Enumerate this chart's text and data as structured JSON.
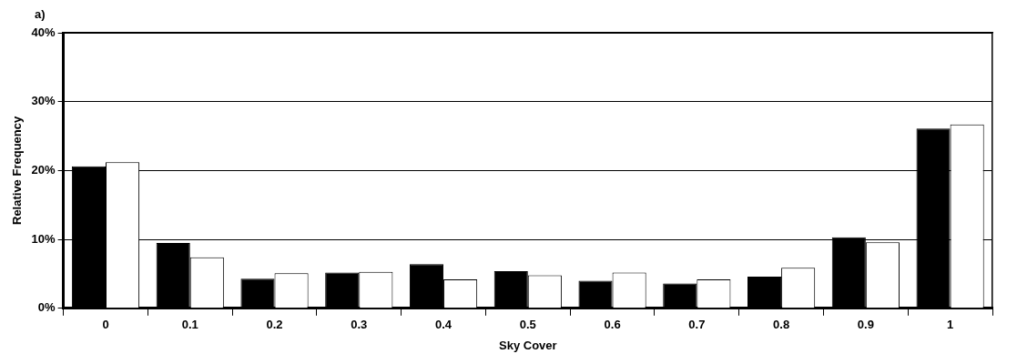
{
  "chart_data": {
    "type": "bar",
    "xlabel": "Sky Cover",
    "ylabel": "Relative Frequency",
    "annotations": [
      "a)"
    ],
    "categories": [
      "0",
      "0.1",
      "0.2",
      "0.3",
      "0.4",
      "0.5",
      "0.6",
      "0.7",
      "0.8",
      "0.9",
      "1"
    ],
    "series": [
      {
        "color": "#000000",
        "values": [
          20.6,
          9.5,
          4.3,
          5.2,
          6.4,
          5.4,
          4.0,
          3.6,
          4.6,
          10.3,
          26.1
        ]
      },
      {
        "color": "#ffffff",
        "values": [
          21.2,
          7.4,
          5.1,
          5.3,
          4.2,
          4.8,
          5.2,
          4.2,
          5.9,
          9.6,
          26.7
        ]
      }
    ],
    "ylim": [
      0,
      40
    ],
    "yticks": [
      {
        "value": 0,
        "label": "0%"
      },
      {
        "value": 10,
        "label": "10%"
      },
      {
        "value": 20,
        "label": "20%"
      },
      {
        "value": 30,
        "label": "30%"
      },
      {
        "value": 40,
        "label": "40%"
      }
    ],
    "grid": "y",
    "legend": false
  }
}
